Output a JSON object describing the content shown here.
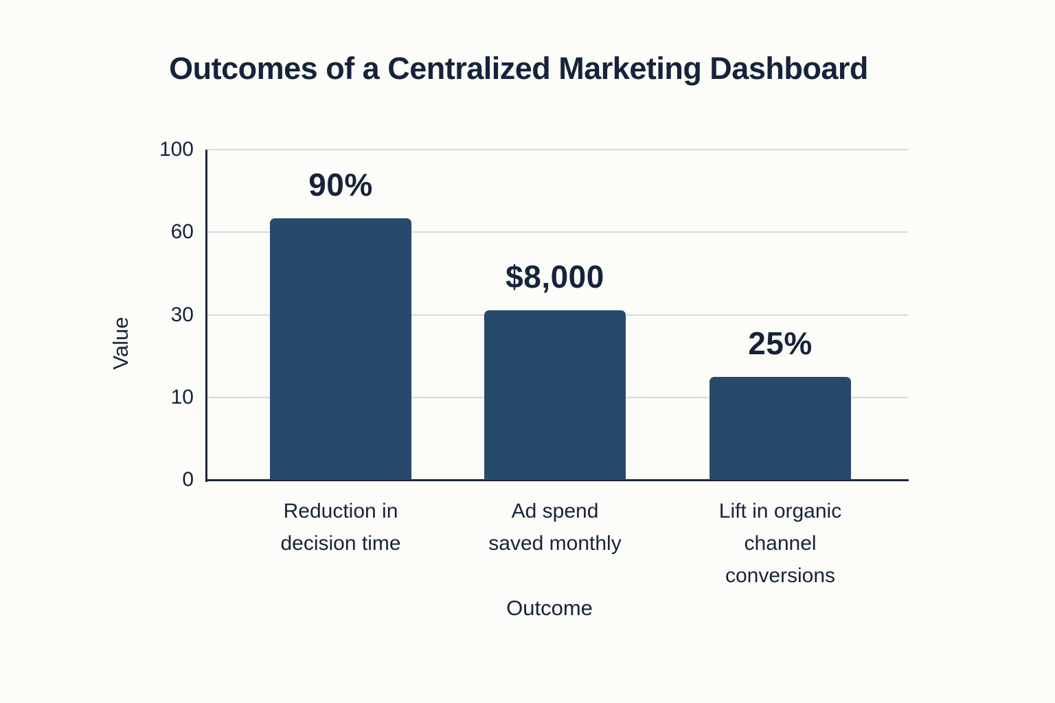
{
  "colors": {
    "background": "#fcfcf9",
    "bar": "#274a6b",
    "grid": "#d2dbe1",
    "axis": "#1b2737",
    "text": "#16233a"
  },
  "chart_data": {
    "type": "bar",
    "title": "Outcomes of a Centralized Marketing Dashboard",
    "xlabel": "Outcome",
    "ylabel": "Value",
    "categories": [
      [
        "Reduction in",
        "decision time"
      ],
      [
        "Ad spend",
        "saved monthly"
      ],
      [
        "Lift in organic",
        "channel conversions"
      ]
    ],
    "bar_labels": [
      "90%",
      "$8,000",
      "25%"
    ],
    "values": [
      90,
      8000,
      25
    ],
    "y_tick_labels": [
      "0",
      "10",
      "30",
      "60",
      "100"
    ],
    "ylim": [
      0,
      100
    ],
    "grid": true,
    "legend": false,
    "axis_note": "y ticks equally spaced (non-linear scale)",
    "plotted_height_fraction": [
      0.792,
      0.514,
      0.312
    ]
  }
}
